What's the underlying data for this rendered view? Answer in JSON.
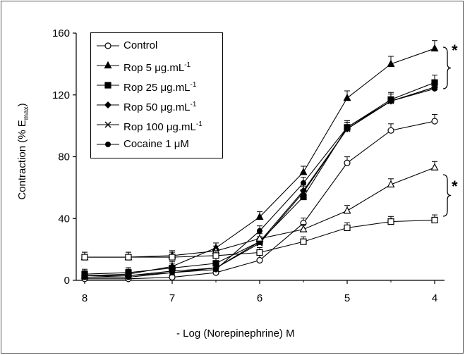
{
  "chart_data": {
    "type": "line",
    "xlabel": "- Log (Norepinephrine) M",
    "ylabel_main": "Contraction  (% E",
    "ylabel_sub": "max",
    "ylabel_close": ")",
    "ylim": [
      0,
      160
    ],
    "xlim": [
      8,
      4
    ],
    "x_ticks": [
      8,
      7,
      6,
      5,
      4
    ],
    "y_ticks": [
      0,
      40,
      80,
      120,
      160
    ],
    "x_reversed": true,
    "annotations": [
      "*",
      "*"
    ],
    "x": [
      8,
      7.5,
      7,
      6.5,
      6,
      5.5,
      5,
      4.5,
      4
    ],
    "series": [
      {
        "name": "Control",
        "marker": "circle-open",
        "values": [
          1,
          1,
          2,
          5,
          13,
          37,
          76,
          97,
          103
        ]
      },
      {
        "name": "Rop 5 μg.mL",
        "name_sup": "-1",
        "marker": "triangle-filled",
        "values": [
          3,
          4,
          9,
          21,
          41,
          70,
          118,
          140,
          150
        ]
      },
      {
        "name": "Rop 25 μg.mL",
        "name_sup": "-1",
        "marker": "square-filled",
        "values": [
          4,
          5,
          8,
          11,
          25,
          54,
          99,
          117,
          128
        ]
      },
      {
        "name": "Rop 50 μg.mL",
        "name_sup": "-1",
        "marker": "diamond-filled",
        "values": [
          3,
          3,
          6,
          8,
          25,
          58,
          98,
          116,
          125
        ]
      },
      {
        "name": "Rop 100 μg.mL",
        "name_sup": "-1",
        "marker": "x",
        "values": [
          2,
          3,
          5,
          8,
          24,
          57,
          98,
          116,
          125
        ]
      },
      {
        "name": "Cocaine 1 μM",
        "marker": "circle-filled",
        "values": [
          2,
          2,
          5,
          7,
          32,
          63,
          99,
          116,
          124
        ]
      },
      {
        "marker": "triangle-open",
        "values": [
          15,
          15,
          16,
          19,
          27,
          33,
          45,
          62,
          73
        ]
      },
      {
        "marker": "square-open",
        "values": [
          15,
          15,
          15,
          16,
          18,
          25,
          34,
          38,
          39
        ]
      }
    ]
  }
}
